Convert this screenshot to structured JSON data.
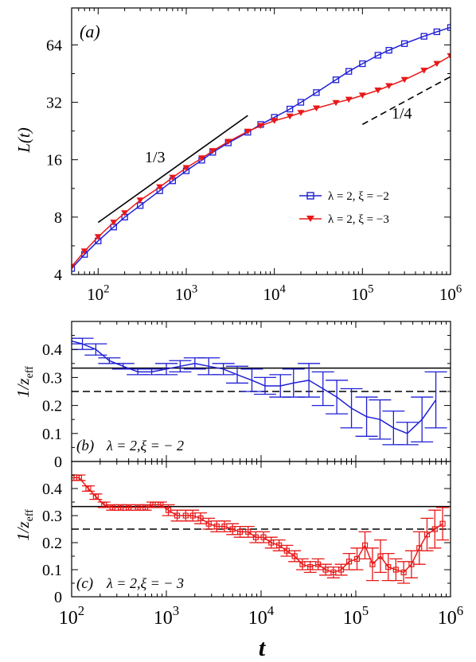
{
  "chart_data": [
    {
      "type": "line",
      "panel_label": "(a)",
      "ylabel": "L(t)",
      "xscale": "log",
      "yscale": "log2",
      "xlim": [
        50,
        1000000
      ],
      "ylim": [
        4,
        100
      ],
      "xticks": [
        100,
        1000,
        10000,
        100000,
        1000000
      ],
      "xtick_labels": [
        {
          "base": "10",
          "exp": "2"
        },
        {
          "base": "10",
          "exp": "3"
        },
        {
          "base": "10",
          "exp": "4"
        },
        {
          "base": "10",
          "exp": "5"
        },
        {
          "base": "10",
          "exp": "6"
        }
      ],
      "yticks": [
        4,
        8,
        16,
        32,
        64
      ],
      "ytick_labels": [
        "4",
        "8",
        "16",
        "32",
        "64"
      ],
      "legend_position": "center-right",
      "series": [
        {
          "name": "λ = 2, ξ = −2",
          "color": "#1f1fd6",
          "marker": "square",
          "x": [
            50,
            70,
            100,
            150,
            200,
            300,
            500,
            700,
            1000,
            1500,
            2000,
            3000,
            5000,
            7000,
            10000,
            15000,
            20000,
            30000,
            50000,
            70000,
            100000,
            150000,
            200000,
            300000,
            500000,
            700000,
            1000000
          ],
          "y": [
            4.3,
            5.1,
            6.0,
            7.1,
            8.0,
            9.2,
            11.0,
            12.4,
            14.0,
            15.9,
            17.5,
            19.6,
            22.3,
            24.5,
            26.7,
            29.5,
            32.0,
            36.0,
            42.0,
            46.5,
            51.0,
            56.5,
            60.0,
            65.0,
            71.0,
            75.0,
            79.0
          ]
        },
        {
          "name": "λ = 2, ξ = −3",
          "color": "#e81818",
          "marker": "triangle-down",
          "x": [
            50,
            70,
            100,
            150,
            200,
            300,
            500,
            700,
            1000,
            1500,
            2000,
            3000,
            5000,
            7000,
            10000,
            15000,
            20000,
            30000,
            50000,
            70000,
            100000,
            150000,
            200000,
            300000,
            500000,
            700000,
            1000000
          ],
          "y": [
            4.4,
            5.3,
            6.3,
            7.5,
            8.4,
            9.8,
            11.5,
            12.9,
            14.5,
            16.3,
            17.8,
            19.9,
            22.5,
            24.1,
            25.6,
            27.0,
            28.2,
            29.8,
            31.8,
            33.1,
            34.8,
            37.0,
            39.0,
            42.0,
            47.0,
            51.0,
            56.0
          ]
        }
      ],
      "reference_lines": [
        {
          "label": "1/3",
          "style": "solid",
          "x": [
            100,
            5000
          ],
          "y": [
            7.5,
            27.3
          ]
        },
        {
          "label": "1/4",
          "style": "dashed",
          "x": [
            100000,
            1000000
          ],
          "y": [
            24.5,
            43.6
          ]
        }
      ]
    },
    {
      "type": "line",
      "panel_label": "(b)",
      "annotation": "λ = 2,ξ = − 2",
      "ylabel": "1/z_eff",
      "xscale": "log",
      "xlim": [
        100,
        1000000
      ],
      "ylim": [
        0,
        0.5
      ],
      "yticks": [
        0,
        0.1,
        0.2,
        0.3,
        0.4
      ],
      "ytick_labels": [
        "0",
        "0.1",
        "0.2",
        "0.3",
        "0.4"
      ],
      "hlines": [
        {
          "y": 0.3333,
          "style": "solid"
        },
        {
          "y": 0.25,
          "style": "dashed"
        }
      ],
      "series": [
        {
          "name": "λ = 2, ξ = −2",
          "color": "#1f1fd6",
          "x": [
            100,
            130,
            180,
            250,
            350,
            500,
            700,
            1000,
            1400,
            2000,
            2800,
            4000,
            5600,
            8000,
            11000,
            16000,
            22000,
            32000,
            45000,
            63000,
            90000,
            130000,
            180000,
            250000,
            350000,
            500000,
            700000
          ],
          "y": [
            0.43,
            0.42,
            0.4,
            0.36,
            0.34,
            0.32,
            0.32,
            0.33,
            0.34,
            0.35,
            0.34,
            0.33,
            0.31,
            0.29,
            0.27,
            0.27,
            0.28,
            0.29,
            0.26,
            0.23,
            0.19,
            0.16,
            0.15,
            0.12,
            0.1,
            0.15,
            0.22
          ],
          "err": [
            0.01,
            0.02,
            0.02,
            0.01,
            0.01,
            0.01,
            0.01,
            0.02,
            0.02,
            0.02,
            0.03,
            0.02,
            0.03,
            0.04,
            0.03,
            0.04,
            0.05,
            0.06,
            0.06,
            0.06,
            0.07,
            0.07,
            0.07,
            0.06,
            0.04,
            0.08,
            0.1
          ]
        }
      ]
    },
    {
      "type": "line",
      "panel_label": "(c)",
      "annotation": "λ = 2,ξ = − 3",
      "ylabel": "1/z_eff",
      "xlabel": "t",
      "xscale": "log",
      "xlim": [
        100,
        1000000
      ],
      "ylim": [
        0,
        0.5
      ],
      "xticks": [
        100,
        1000,
        10000,
        100000,
        1000000
      ],
      "xtick_labels": [
        {
          "base": "10",
          "exp": "2"
        },
        {
          "base": "10",
          "exp": "3"
        },
        {
          "base": "10",
          "exp": "4"
        },
        {
          "base": "10",
          "exp": "5"
        },
        {
          "base": "10",
          "exp": "6"
        }
      ],
      "yticks": [
        0,
        0.1,
        0.2,
        0.3,
        0.4
      ],
      "ytick_labels": [
        "0",
        "0.1",
        "0.2",
        "0.3",
        "0.4"
      ],
      "hlines": [
        {
          "y": 0.3333,
          "style": "solid"
        },
        {
          "y": 0.25,
          "style": "dashed"
        }
      ],
      "series": [
        {
          "name": "λ = 2, ξ = −3",
          "color": "#e81818",
          "marker": "square",
          "x": [
            100,
            120,
            150,
            180,
            220,
            270,
            330,
            400,
            500,
            600,
            720,
            870,
            1050,
            1300,
            1600,
            1900,
            2300,
            2800,
            3400,
            4100,
            5000,
            6000,
            7300,
            8800,
            10600,
            12800,
            15500,
            18700,
            22600,
            27300,
            33000,
            40000,
            48000,
            58000,
            70000,
            85000,
            103000,
            125000,
            150000,
            182000,
            220000,
            265000,
            320000,
            387000,
            468000,
            565000,
            683000,
            825000
          ],
          "y": [
            0.44,
            0.44,
            0.4,
            0.37,
            0.34,
            0.33,
            0.33,
            0.33,
            0.33,
            0.33,
            0.34,
            0.34,
            0.32,
            0.3,
            0.3,
            0.3,
            0.29,
            0.27,
            0.26,
            0.26,
            0.25,
            0.24,
            0.24,
            0.22,
            0.22,
            0.2,
            0.19,
            0.17,
            0.15,
            0.12,
            0.11,
            0.12,
            0.1,
            0.09,
            0.1,
            0.13,
            0.14,
            0.19,
            0.12,
            0.15,
            0.11,
            0.1,
            0.09,
            0.12,
            0.18,
            0.23,
            0.25,
            0.27
          ],
          "err": [
            0.01,
            0.01,
            0.01,
            0.01,
            0.01,
            0.01,
            0.01,
            0.01,
            0.01,
            0.01,
            0.01,
            0.01,
            0.02,
            0.02,
            0.02,
            0.02,
            0.02,
            0.02,
            0.02,
            0.02,
            0.02,
            0.02,
            0.02,
            0.02,
            0.02,
            0.02,
            0.02,
            0.02,
            0.02,
            0.02,
            0.02,
            0.02,
            0.02,
            0.02,
            0.02,
            0.03,
            0.04,
            0.05,
            0.06,
            0.06,
            0.05,
            0.04,
            0.04,
            0.05,
            0.06,
            0.06,
            0.07,
            0.06
          ]
        }
      ]
    }
  ]
}
